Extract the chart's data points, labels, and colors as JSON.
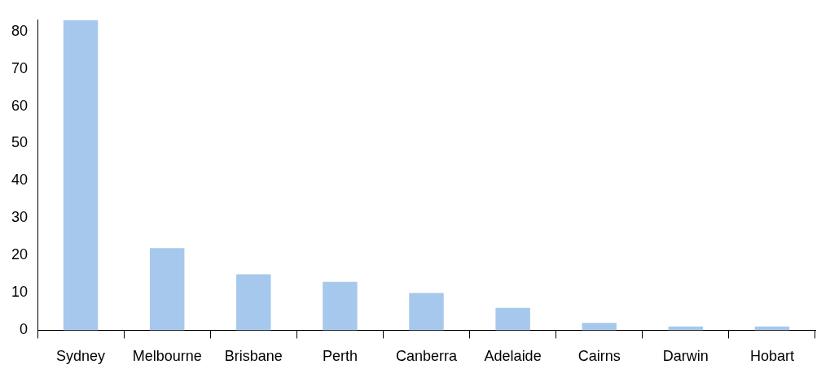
{
  "chart_data": {
    "type": "bar",
    "categories": [
      "Sydney",
      "Melbourne",
      "Brisbane",
      "Perth",
      "Canberra",
      "Adelaide",
      "Cairns",
      "Darwin",
      "Hobart"
    ],
    "values": [
      83,
      22,
      15,
      13,
      10,
      6,
      2,
      1,
      1
    ],
    "color": "#a6c8ec",
    "ylim": [
      0,
      83
    ],
    "yticks": [
      0,
      10,
      20,
      30,
      40,
      50,
      60,
      70,
      80
    ]
  }
}
